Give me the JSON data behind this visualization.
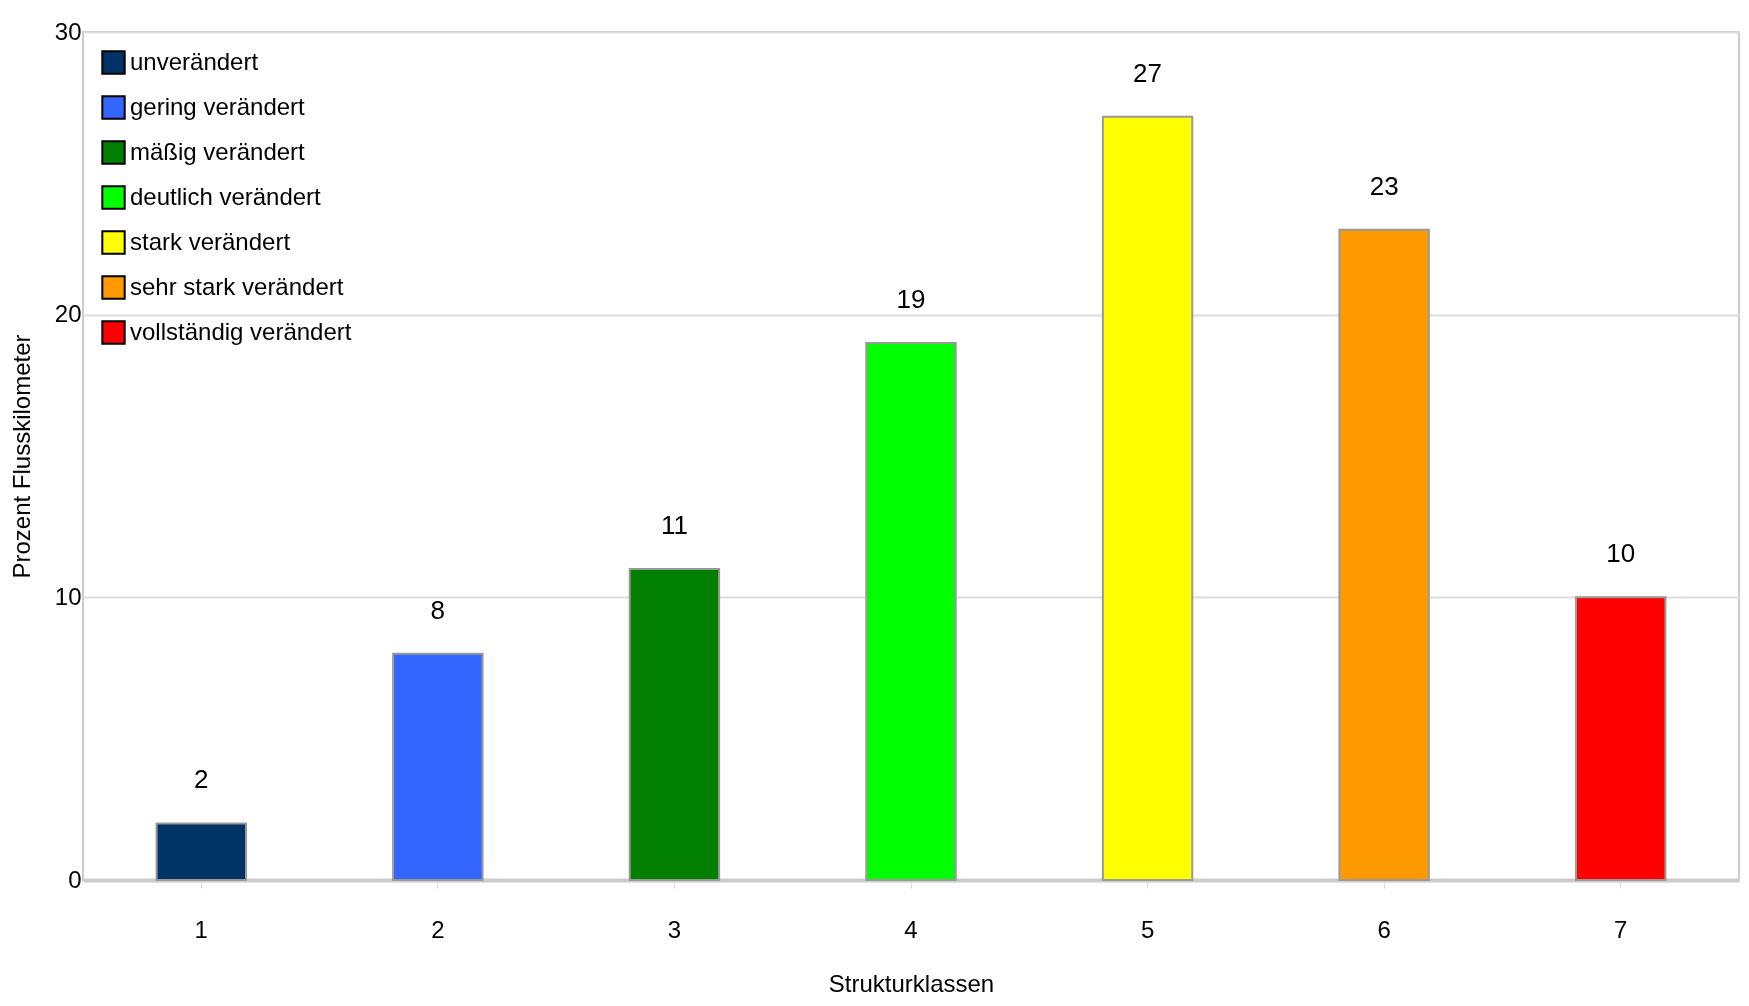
{
  "chart_data": {
    "type": "bar",
    "xlabel": "Strukturklassen",
    "ylabel": "Prozent Flusskilometer",
    "categories": [
      "1",
      "2",
      "3",
      "4",
      "5",
      "6",
      "7"
    ],
    "stacked": true,
    "series": [
      {
        "name": "unverändert",
        "color": "#003366",
        "values": [
          2,
          null,
          null,
          null,
          null,
          null,
          null
        ]
      },
      {
        "name": "gering verändert",
        "color": "#3366ff",
        "values": [
          null,
          8,
          null,
          null,
          null,
          null,
          null
        ]
      },
      {
        "name": "mäßig verändert",
        "color": "#007f00",
        "values": [
          null,
          null,
          11,
          null,
          null,
          null,
          null
        ]
      },
      {
        "name": "deutlich verändert",
        "color": "#00ff00",
        "values": [
          null,
          null,
          null,
          19,
          null,
          null,
          null
        ]
      },
      {
        "name": "stark verändert",
        "color": "#ffff00",
        "values": [
          null,
          null,
          null,
          null,
          27,
          null,
          null
        ]
      },
      {
        "name": "sehr stark verändert",
        "color": "#ff9900",
        "values": [
          null,
          null,
          null,
          null,
          null,
          23,
          null
        ]
      },
      {
        "name": "vollständig verändert",
        "color": "#ff0000",
        "values": [
          null,
          null,
          null,
          null,
          null,
          null,
          10
        ]
      }
    ],
    "ylim": [
      0,
      30
    ],
    "yticks": [
      0,
      10,
      20,
      30
    ],
    "grid": "y",
    "legend": "top left",
    "data_labels": true
  }
}
